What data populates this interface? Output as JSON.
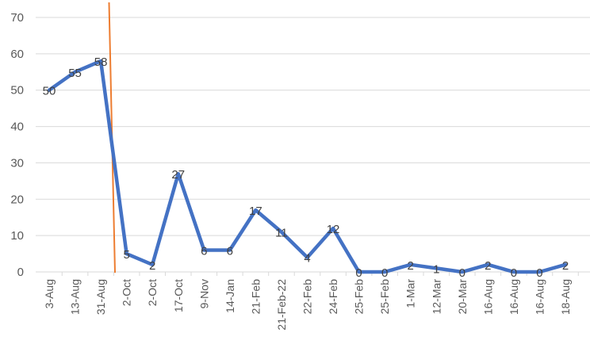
{
  "chart_data": {
    "type": "line",
    "categories": [
      "3-Aug",
      "13-Aug",
      "31-Aug",
      "2-Oct",
      "2-Oct",
      "17-Oct",
      "9-Nov",
      "14-Jan",
      "21-Feb",
      "21-Feb-22",
      "22-Feb",
      "24-Feb",
      "25-Feb",
      "25-Feb",
      "1-Mar",
      "12-Mar",
      "20-Mar",
      "16-Aug",
      "16-Aug",
      "16-Aug",
      "18-Aug"
    ],
    "series": [
      {
        "values": [
          50,
          55,
          58,
          5,
          2,
          27,
          6,
          6,
          17,
          11,
          4,
          12,
          0,
          0,
          2,
          1,
          0,
          2,
          0,
          0,
          2
        ]
      }
    ],
    "ylim": [
      0,
      70
    ],
    "yticks": [
      0,
      10,
      20,
      30,
      40,
      50,
      60,
      70
    ],
    "grid": true,
    "data_labels": true,
    "line_color": "#4472c4",
    "vertical_marker_color": "#ed7d31",
    "vertical_marker_between": [
      "31-Aug",
      "2-Oct"
    ]
  }
}
